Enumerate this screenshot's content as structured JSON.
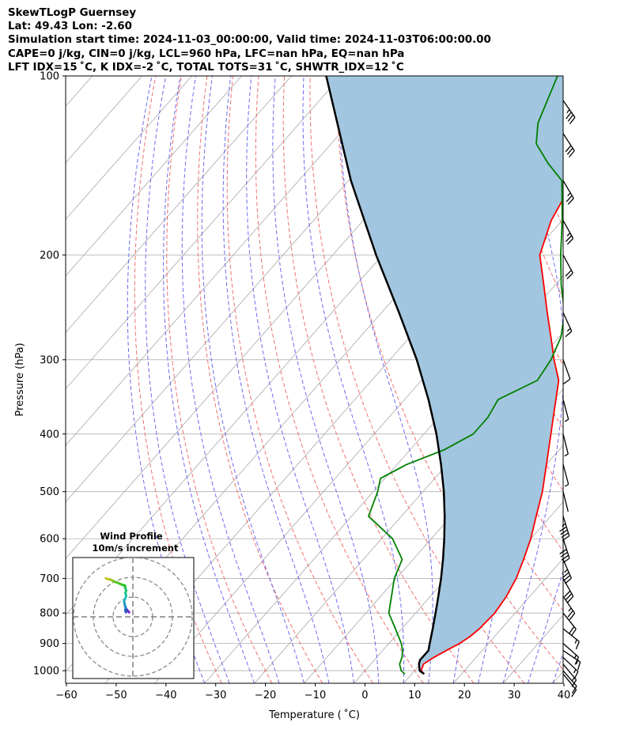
{
  "header": {
    "line1": "SkewTLogP Guernsey",
    "line2": "Lat: 49.43   Lon: -2.60",
    "line3": "Simulation start time: 2024-11-03_00:00:00, Valid time: 2024-11-03T06:00:00.00",
    "line4": "CAPE=0 j/kg, CIN=0 j/kg, LCL=960 hPa, LFC=nan hPa, EQ=nan hPa",
    "line5": "LFT IDX=15 ˚C, K IDX=-2 ˚C, TOTAL TOTS=31 ˚C, SHWTR_IDX=12 ˚C"
  },
  "chart_data": {
    "type": "line",
    "xlabel": "Temperature ( ˚C)",
    "ylabel": "Pressure (hPa)",
    "xlim": [
      -60,
      40
    ],
    "ylim": [
      1050,
      100
    ],
    "y_scale": "log",
    "x_ticks": [
      -60,
      -50,
      -40,
      -30,
      -20,
      -10,
      0,
      10,
      20,
      30,
      40
    ],
    "y_ticks": [
      1000,
      900,
      800,
      700,
      600,
      500,
      400,
      300,
      200,
      100
    ],
    "x_tick_labels": [
      "−60",
      "−50",
      "−40",
      "−30",
      "−20",
      "−10",
      "0",
      "10",
      "20",
      "30",
      "40"
    ],
    "y_tick_labels": [
      "1000",
      "900",
      "800",
      "700",
      "600",
      "500",
      "400",
      "300",
      "200",
      "100"
    ],
    "grid": true,
    "series": [
      {
        "color": "#ff0000",
        "points": [
          [
            1013,
            12.5
          ],
          [
            1000,
            11.3
          ],
          [
            975,
            10.6
          ],
          [
            950,
            11.5
          ],
          [
            925,
            12.8
          ],
          [
            900,
            14.2
          ],
          [
            875,
            15.1
          ],
          [
            850,
            15.6
          ],
          [
            800,
            15.9
          ],
          [
            750,
            15.3
          ],
          [
            700,
            14.1
          ],
          [
            650,
            12.2
          ],
          [
            600,
            10.0
          ],
          [
            550,
            7.1
          ],
          [
            500,
            4.0
          ],
          [
            450,
            0.0
          ],
          [
            400,
            -4.5
          ],
          [
            350,
            -9.6
          ],
          [
            325,
            -12.4
          ],
          [
            300,
            -17.0
          ],
          [
            275,
            -21.6
          ],
          [
            250,
            -26.7
          ],
          [
            225,
            -32.2
          ],
          [
            200,
            -38.4
          ],
          [
            175,
            -42.2
          ],
          [
            150,
            -44.8
          ],
          [
            125,
            -47.5
          ],
          [
            110,
            -49.9
          ],
          [
            100,
            -51.5
          ]
        ]
      },
      {
        "color": "#008000",
        "points": [
          [
            1013,
            8.6
          ],
          [
            1000,
            7.3
          ],
          [
            975,
            5.8
          ],
          [
            950,
            5.1
          ],
          [
            925,
            4.0
          ],
          [
            900,
            2.5
          ],
          [
            850,
            -1.3
          ],
          [
            800,
            -5.4
          ],
          [
            750,
            -7.8
          ],
          [
            700,
            -10.4
          ],
          [
            650,
            -12.2
          ],
          [
            600,
            -17.8
          ],
          [
            550,
            -26.6
          ],
          [
            500,
            -29.1
          ],
          [
            475,
            -30.9
          ],
          [
            450,
            -28.1
          ],
          [
            425,
            -23.1
          ],
          [
            400,
            -20.1
          ],
          [
            375,
            -20.1
          ],
          [
            350,
            -21.2
          ],
          [
            325,
            -16.7
          ],
          [
            300,
            -17.6
          ],
          [
            275,
            -19.6
          ],
          [
            250,
            -23.2
          ],
          [
            225,
            -28.7
          ],
          [
            200,
            -34.2
          ],
          [
            175,
            -40.0
          ],
          [
            150,
            -47.1
          ],
          [
            140,
            -53.1
          ],
          [
            130,
            -58.8
          ],
          [
            120,
            -62.1
          ],
          [
            100,
            -66.5
          ]
        ]
      },
      {
        "color": "#000000",
        "points": [
          [
            1013,
            12.5
          ],
          [
            1000,
            11.0
          ],
          [
            975,
            9.7
          ],
          [
            960,
            9.2
          ],
          [
            925,
            9.2
          ],
          [
            900,
            8.2
          ],
          [
            850,
            6.2
          ],
          [
            800,
            4.0
          ],
          [
            750,
            1.6
          ],
          [
            700,
            -1.0
          ],
          [
            650,
            -4.0
          ],
          [
            600,
            -7.4
          ],
          [
            550,
            -11.3
          ],
          [
            500,
            -15.8
          ],
          [
            450,
            -21.2
          ],
          [
            400,
            -27.5
          ],
          [
            350,
            -35.2
          ],
          [
            300,
            -44.6
          ],
          [
            250,
            -56.5
          ],
          [
            200,
            -71.3
          ],
          [
            150,
            -89.5
          ],
          [
            100,
            -113.0
          ]
        ]
      }
    ],
    "wind_barbs": [
      {
        "p": 1013,
        "u": -1.9,
        "v": 2.3
      },
      {
        "p": 1000,
        "u": -2.6,
        "v": 3.0
      },
      {
        "p": 975,
        "u": -3.5,
        "v": 4.2
      },
      {
        "p": 950,
        "u": -3.8,
        "v": 3.6
      },
      {
        "p": 925,
        "u": -3.6,
        "v": 2.4
      },
      {
        "p": 900,
        "u": -3.4,
        "v": 3.0
      },
      {
        "p": 850,
        "u": -3.5,
        "v": 2.8
      },
      {
        "p": 800,
        "u": -3.7,
        "v": 4.6
      },
      {
        "p": 750,
        "u": -4.1,
        "v": 6.0
      },
      {
        "p": 700,
        "u": -4.5,
        "v": 8.0
      },
      {
        "p": 650,
        "u": -4.0,
        "v": 9.2
      },
      {
        "p": 600,
        "u": -3.4,
        "v": 10.6
      },
      {
        "p": 550,
        "u": -3.8,
        "v": 12.2
      },
      {
        "p": 500,
        "u": -3.4,
        "v": 13.6
      },
      {
        "p": 450,
        "u": -4.0,
        "v": 14.9
      },
      {
        "p": 400,
        "u": -3.9,
        "v": 15.6
      },
      {
        "p": 350,
        "u": -4.3,
        "v": 16.1
      },
      {
        "p": 300,
        "u": -6.0,
        "v": 16.6
      },
      {
        "p": 250,
        "u": -8.0,
        "v": 17.5
      },
      {
        "p": 200,
        "u": -9.7,
        "v": 18.1
      },
      {
        "p": 175,
        "u": -10.3,
        "v": 18.5
      },
      {
        "p": 150,
        "u": -11.3,
        "v": 19.0
      },
      {
        "p": 125,
        "u": -12.6,
        "v": 19.2
      },
      {
        "p": 110,
        "u": -13.8,
        "v": 19.7
      }
    ]
  },
  "inset": {
    "title": "Wind Profile",
    "subtitle": "10m/s increment"
  }
}
